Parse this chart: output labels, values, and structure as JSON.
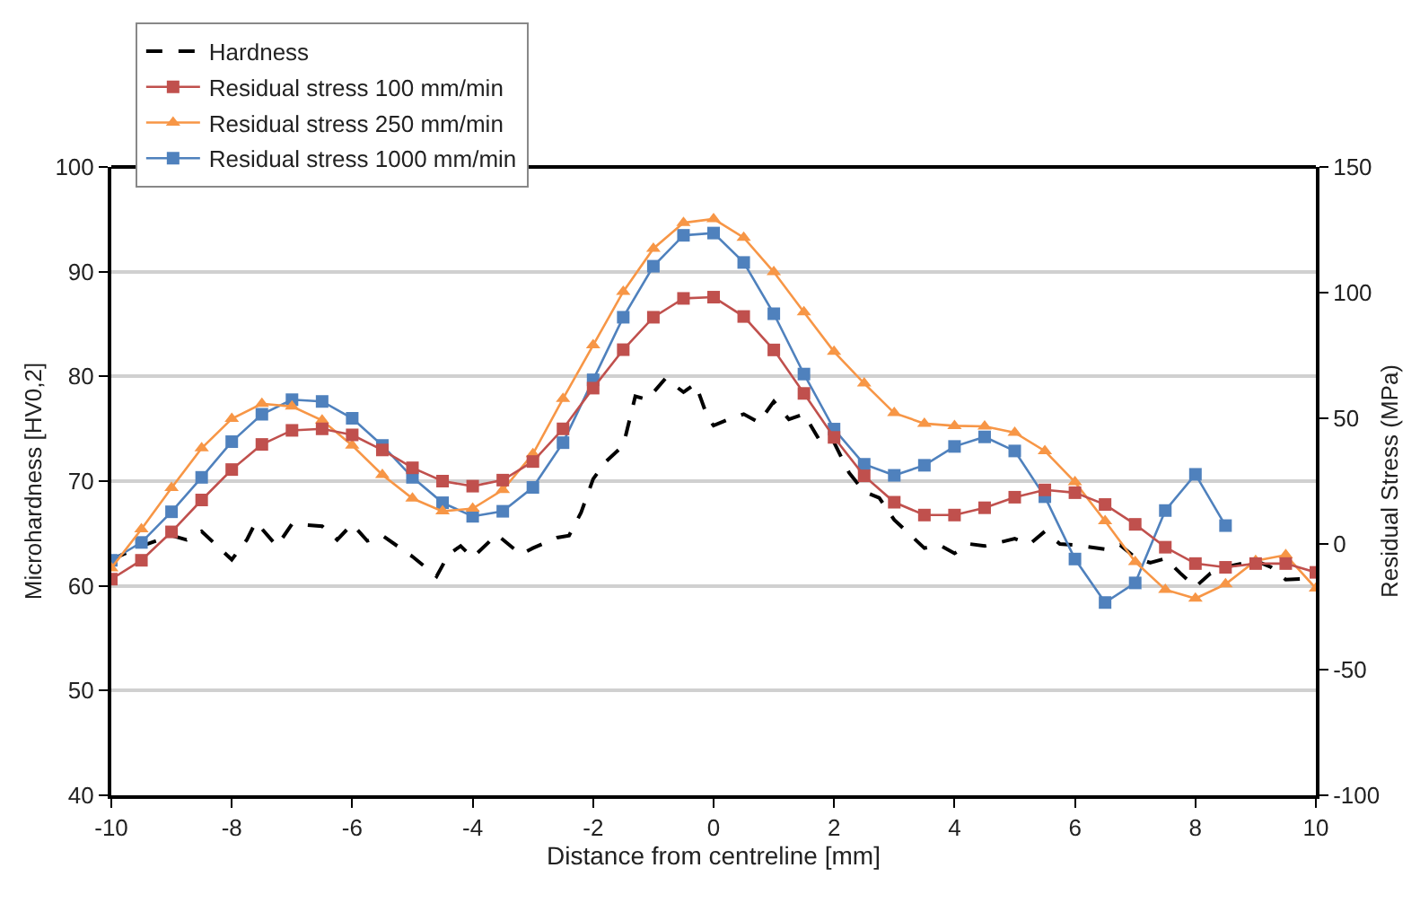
{
  "chart_data": {
    "type": "line",
    "xlabel": "Distance from centreline [mm]",
    "ylabel": "Microhardness [HV0,2]",
    "y2label": "Residual Stress (MPa)",
    "xlim": [
      -10,
      10
    ],
    "xticks": [
      -10,
      -8,
      -6,
      -4,
      -2,
      0,
      2,
      4,
      6,
      8,
      10
    ],
    "ylim": [
      40,
      100
    ],
    "yticks": [
      40,
      50,
      60,
      70,
      80,
      90,
      100
    ],
    "y2lim": [
      -100,
      150
    ],
    "y2ticks": [
      -100,
      -50,
      0,
      50,
      100,
      150
    ],
    "grid": "y",
    "legend": "top left",
    "series": [
      {
        "name": "Hardness",
        "color": "#000000",
        "marker": "none",
        "line_style": "dashed",
        "x": [
          -10,
          -9.5,
          -9,
          -8.75,
          -8.5,
          -8,
          -7.75,
          -7.6,
          -7.25,
          -7,
          -6.5,
          -6.25,
          -6,
          -5.75,
          -5.5,
          -5,
          -4.6,
          -4.4,
          -4.2,
          -4,
          -3.6,
          -3.2,
          -3,
          -2.6,
          -2.4,
          -2.2,
          -2,
          -1.8,
          -1.5,
          -1.3,
          -1.1,
          -0.8,
          -0.5,
          -0.3,
          -0.1,
          0,
          0.25,
          0.5,
          0.75,
          1,
          1.25,
          1.5,
          1.75,
          2,
          2.25,
          2.5,
          2.75,
          3,
          3.5,
          3.75,
          4,
          4.25,
          4.5,
          5,
          5.25,
          5.5,
          5.75,
          6,
          6.5,
          6.75,
          7,
          7.25,
          7.5,
          7.75,
          8,
          8.25,
          8.5,
          9,
          9.25,
          9.5,
          10
        ],
        "values": [
          62.5,
          63.8,
          64.8,
          64.4,
          65.2,
          62.5,
          64.4,
          66.1,
          63.8,
          65.9,
          65.7,
          64.4,
          65.9,
          64.3,
          64.8,
          62.8,
          60.9,
          63.0,
          63.8,
          62.7,
          64.9,
          63.0,
          63.6,
          64.6,
          64.8,
          67.0,
          70.2,
          71.8,
          73.4,
          78.1,
          77.8,
          79.8,
          78.5,
          79.3,
          76.1,
          75.3,
          75.9,
          76.4,
          75.6,
          77.6,
          75.9,
          76.4,
          74.0,
          73.7,
          70.8,
          69.0,
          68.4,
          66.3,
          63.6,
          63.9,
          63.1,
          64.0,
          63.8,
          64.5,
          64.0,
          65.2,
          64.0,
          63.9,
          63.5,
          63.9,
          62.7,
          62.2,
          62.6,
          61.2,
          59.9,
          61.2,
          61.8,
          62.4,
          61.8,
          60.6,
          60.7
        ]
      },
      {
        "name": "Residual stress 100 mm/min",
        "color": "#c0504d",
        "marker": "square",
        "line_style": "solid",
        "axis": "y2",
        "x": [
          -10,
          -9.5,
          -9,
          -8.5,
          -8,
          -7.5,
          -7,
          -6.5,
          -6,
          -5.5,
          -5,
          -4.5,
          -4,
          -3.5,
          -3,
          -2.5,
          -2,
          -1.5,
          -1,
          -0.5,
          0,
          0.5,
          1,
          1.5,
          2,
          2.5,
          3,
          3.5,
          4,
          4.5,
          5,
          5.5,
          6,
          6.5,
          7,
          7.5,
          8,
          8.5,
          9,
          9.5,
          10
        ],
        "values": [
          -14,
          -6.5,
          4.8,
          17.5,
          29.6,
          39.6,
          45.2,
          45.8,
          43.4,
          37.4,
          30.3,
          25,
          23,
          25.4,
          32.8,
          45.8,
          62,
          77.3,
          90.2,
          97.7,
          98.2,
          90.5,
          77.2,
          59.9,
          42.4,
          27.1,
          16.6,
          11.5,
          11.5,
          14.4,
          18.6,
          21.5,
          20.4,
          15.7,
          7.8,
          -1.3,
          -7.8,
          -9.3,
          -7.8,
          -7.8,
          -11.3
        ]
      },
      {
        "name": "Residual stress 250 mm/min",
        "color": "#f79646",
        "marker": "triangle",
        "line_style": "solid",
        "axis": "y2",
        "x": [
          -10,
          -9.5,
          -9,
          -8.5,
          -8,
          -7.5,
          -7,
          -6.5,
          -6,
          -5.5,
          -5,
          -4.5,
          -4,
          -3.5,
          -3,
          -2.5,
          -2,
          -1.5,
          -1,
          -0.5,
          0,
          0.5,
          1,
          1.5,
          2,
          2.5,
          3,
          3.5,
          4,
          4.5,
          5,
          5.5,
          6,
          6.5,
          7,
          7.5,
          8,
          8.5,
          9,
          9.5,
          10
        ],
        "values": [
          -9.6,
          5.9,
          22.3,
          38.1,
          49.8,
          55.8,
          54.7,
          49.2,
          39.2,
          27.5,
          18.1,
          13,
          14.1,
          21.5,
          35.8,
          57.8,
          79.1,
          100.4,
          117.5,
          127.8,
          129.3,
          121.9,
          108.2,
          92.2,
          76.5,
          63.9,
          52.1,
          47.9,
          47,
          46.8,
          44.3,
          37,
          24.6,
          9.1,
          -7.1,
          -18.2,
          -21.7,
          -16,
          -6.7,
          -4.4,
          -17.7
        ]
      },
      {
        "name": "Residual stress 1000 mm/min",
        "color": "#4f81bd",
        "marker": "square",
        "line_style": "solid",
        "axis": "y2",
        "x": [
          -10,
          -9.5,
          -9,
          -8.5,
          -8,
          -7.5,
          -7,
          -6.5,
          -6,
          -5.5,
          -5,
          -4.5,
          -4,
          -3.5,
          -3,
          -2.5,
          -2,
          -1.5,
          -1,
          -0.5,
          0,
          0.5,
          1,
          1.5,
          2,
          2.5,
          3,
          3.5,
          4,
          4.5,
          5,
          5.5,
          6,
          6.5,
          7,
          7.5,
          8,
          8.5
        ],
        "values": [
          -6.5,
          0.6,
          12.8,
          26.5,
          40.7,
          51.6,
          57.4,
          56.7,
          50,
          39.2,
          26.5,
          16.4,
          11,
          13,
          22.5,
          40.3,
          65.3,
          90.2,
          110.5,
          122.8,
          123.7,
          112,
          91.6,
          67.6,
          45.7,
          31.7,
          27.3,
          31.3,
          38.8,
          42.6,
          37,
          18.8,
          -6,
          -23.3,
          -15.5,
          13.3,
          27.7,
          7.3
        ]
      }
    ]
  }
}
